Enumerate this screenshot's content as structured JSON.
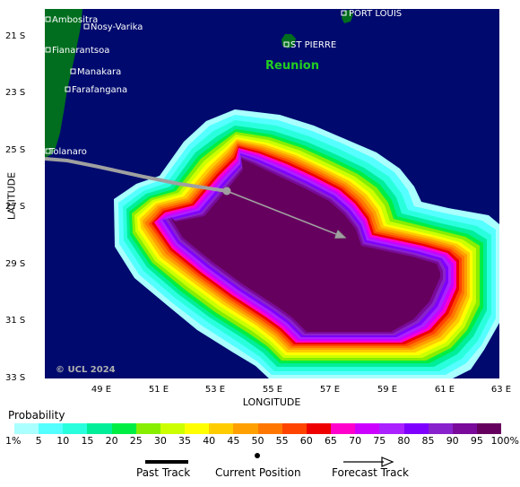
{
  "map": {
    "copyright": "© UCL 2024",
    "region_label": "Reunion",
    "x_axis_label": "LONGITUDE",
    "y_axis_label": "LATITUDE",
    "x_ticks": [
      "49 E",
      "51 E",
      "53 E",
      "55 E",
      "57 E",
      "59 E",
      "61 E",
      "63 E"
    ],
    "y_ticks": [
      "21 S",
      "23 S",
      "25 S",
      "27 S",
      "29 S",
      "31 S",
      "33 S"
    ],
    "places": [
      {
        "name": "Ambositra"
      },
      {
        "name": "Nosy-Varika"
      },
      {
        "name": "Fianarantsoa"
      },
      {
        "name": "Manakara"
      },
      {
        "name": "Farafangana"
      },
      {
        "name": "Tolanaro"
      },
      {
        "name": "PORT LOUIS"
      },
      {
        "name": "ST PIERRE"
      }
    ],
    "colors": {
      "ocean": "#000a6e",
      "land": "#006e1e",
      "region_label": "#22cc22",
      "track": "#a0a0a0"
    }
  },
  "legend": {
    "probability_title": "Probability",
    "scale_labels": [
      "1%",
      "5",
      "10",
      "15",
      "20",
      "25",
      "30",
      "35",
      "40",
      "45",
      "50",
      "55",
      "60",
      "65",
      "70",
      "75",
      "80",
      "85",
      "90",
      "95",
      "100%"
    ],
    "scale_colors": [
      "#aaffff",
      "#55ffff",
      "#2affdd",
      "#00ee99",
      "#00ee44",
      "#88ee00",
      "#ccff00",
      "#ffff00",
      "#ffcc00",
      "#ffa000",
      "#ff7700",
      "#ff4400",
      "#ee0000",
      "#ff00cc",
      "#cc00ff",
      "#aa22ff",
      "#7f00ff",
      "#8822cc",
      "#7a0a9a",
      "#66005e"
    ],
    "past_track": "Past Track",
    "current_position": "Current Position",
    "forecast_track": "Forecast Track"
  }
}
